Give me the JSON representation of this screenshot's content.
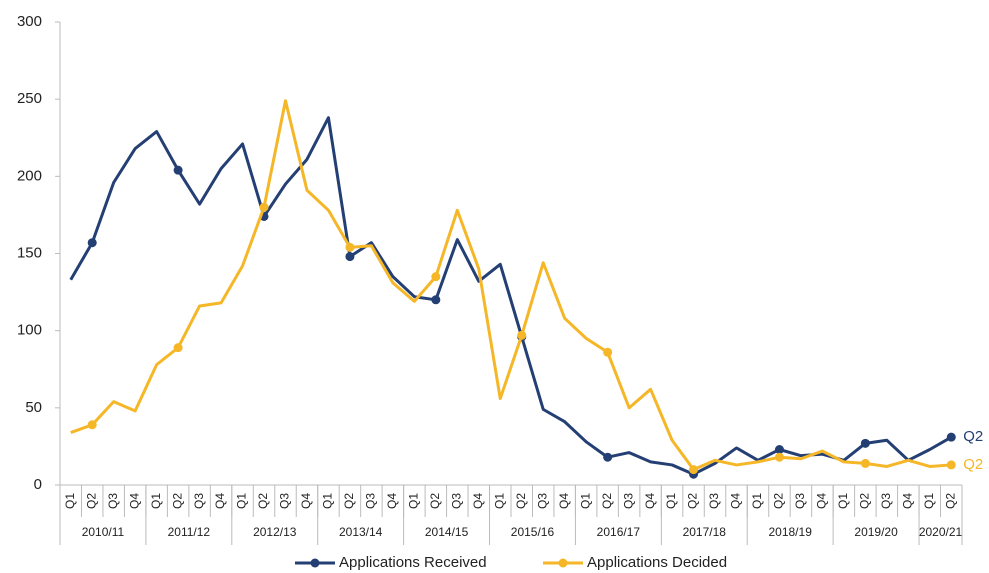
{
  "chart_data": {
    "type": "line",
    "categories": [
      "Q1",
      "Q2",
      "Q3",
      "Q4",
      "Q1",
      "Q2",
      "Q3",
      "Q4",
      "Q1",
      "Q2",
      "Q3",
      "Q4",
      "Q1",
      "Q2",
      "Q3",
      "Q4",
      "Q1",
      "Q2",
      "Q3",
      "Q4",
      "Q1",
      "Q2",
      "Q3",
      "Q4",
      "Q1",
      "Q2",
      "Q3",
      "Q4",
      "Q1",
      "Q2",
      "Q3",
      "Q4",
      "Q1",
      "Q2",
      "Q3",
      "Q4",
      "Q1",
      "Q2",
      "Q3",
      "Q4",
      "Q1",
      "Q2"
    ],
    "groups": [
      "2010/11",
      "2011/12",
      "2012/13",
      "2013/14",
      "2014/15",
      "2015/16",
      "2016/17",
      "2017/18",
      "2018/19",
      "2019/20",
      "2020/21"
    ],
    "series": [
      {
        "name": "Applications Received",
        "color": "#243f73",
        "end_label": "Q2",
        "values": [
          133,
          157,
          196,
          218,
          229,
          204,
          182,
          205,
          221,
          174,
          195,
          211,
          238,
          148,
          157,
          135,
          122,
          120,
          159,
          132,
          143,
          96,
          49,
          41,
          28,
          18,
          21,
          15,
          13,
          7,
          14,
          24,
          16,
          23,
          19,
          20,
          16,
          27,
          29,
          16,
          23,
          31
        ]
      },
      {
        "name": "Applications Decided",
        "color": "#f5b727",
        "end_label": "Q2",
        "values": [
          34,
          39,
          54,
          48,
          78,
          89,
          116,
          118,
          142,
          180,
          249,
          191,
          178,
          154,
          155,
          131,
          119,
          135,
          178,
          140,
          56,
          97,
          144,
          108,
          95,
          86,
          50,
          62,
          29,
          10,
          16,
          13,
          15,
          18,
          17,
          22,
          15,
          14,
          12,
          16,
          12,
          13
        ]
      }
    ],
    "ylim": [
      0,
      300
    ],
    "yticks": [
      0,
      50,
      100,
      150,
      200,
      250,
      300
    ],
    "grid": false,
    "legend": "bottom"
  }
}
